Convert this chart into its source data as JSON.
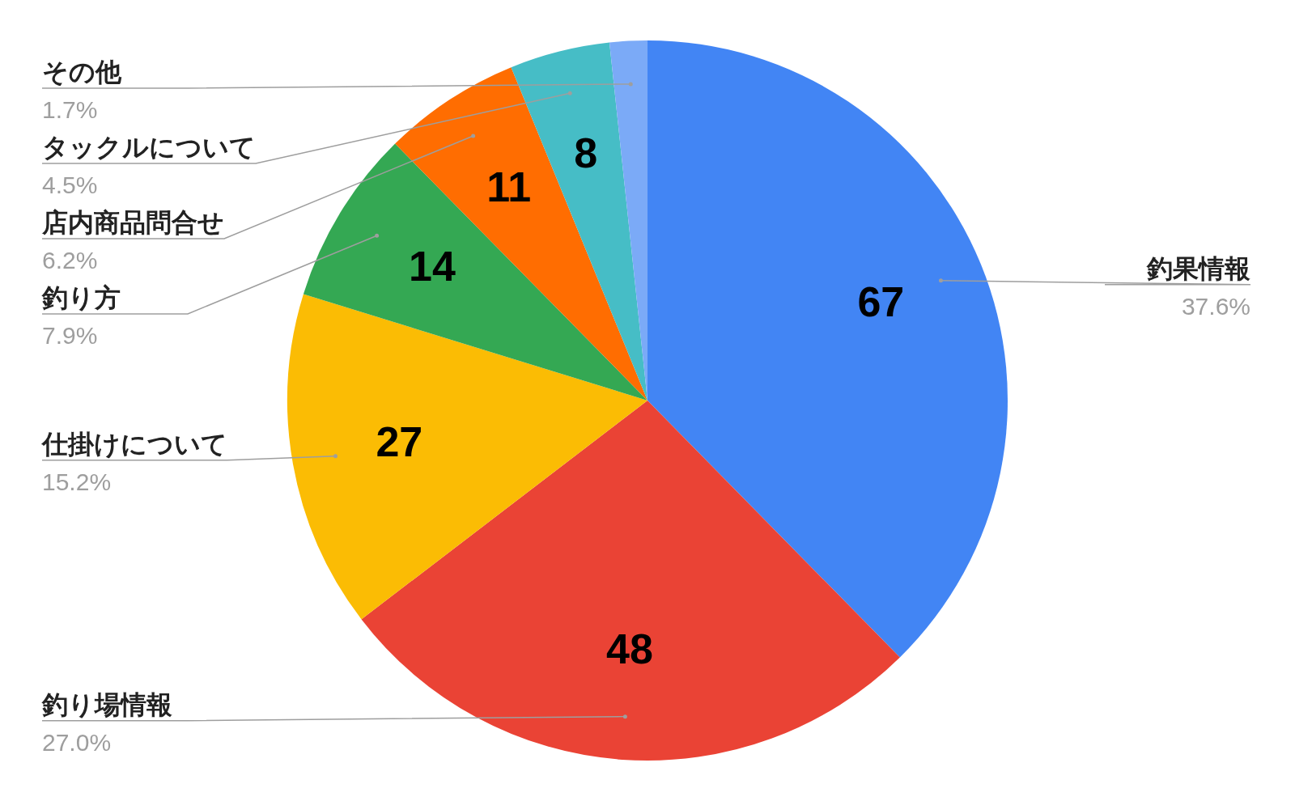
{
  "chart_data": {
    "type": "pie",
    "categories": [
      "釣果情報",
      "釣り場情報",
      "仕掛けについて",
      "釣り方",
      "店内商品問合せ",
      "タックルについて",
      "その他"
    ],
    "values": [
      67,
      48,
      27,
      14,
      11,
      8,
      3
    ],
    "colors": [
      "#4285f4",
      "#ea4335",
      "#fbbc04",
      "#34a853",
      "#ff6d01",
      "#46bdc6",
      "#7baaf7"
    ],
    "value_labels": [
      "67",
      "48",
      "27",
      "14",
      "11",
      "8",
      null
    ],
    "annotations": [
      "37.6%",
      "27.0%",
      "15.2%",
      "7.9%",
      "6.2%",
      "4.5%",
      "1.7%"
    ],
    "legend": false
  }
}
